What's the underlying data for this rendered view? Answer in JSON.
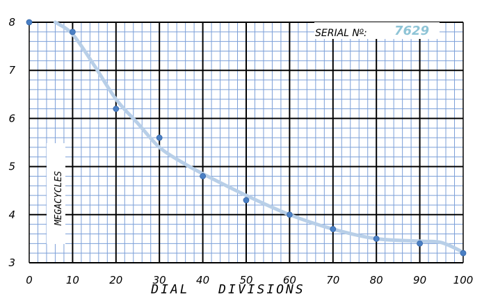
{
  "chart_data": {
    "type": "scatter",
    "title": "",
    "xlabel": "DIAL   DIVISIONS",
    "ylabel": "MEGACYCLES",
    "xlim": [
      0,
      100
    ],
    "ylim": [
      3,
      8
    ],
    "x_ticks": [
      "0",
      "10",
      "20",
      "30",
      "40",
      "50",
      "60",
      "70",
      "80",
      "90",
      "100"
    ],
    "y_ticks": [
      "3",
      "4",
      "5",
      "6",
      "7",
      "8"
    ],
    "grid": true,
    "series": [
      {
        "points": [
          {
            "x": 0,
            "y": 8.0
          },
          {
            "x": 10,
            "y": 7.8
          },
          {
            "x": 20,
            "y": 6.2
          },
          {
            "x": 30,
            "y": 5.6
          },
          {
            "x": 40,
            "y": 4.8
          },
          {
            "x": 50,
            "y": 4.3
          },
          {
            "x": 60,
            "y": 4.0
          },
          {
            "x": 70,
            "y": 3.7
          },
          {
            "x": 80,
            "y": 3.5
          },
          {
            "x": 90,
            "y": 3.4
          },
          {
            "x": 100,
            "y": 3.2
          }
        ],
        "color": "#4a7fc4"
      }
    ],
    "trend_curve": {
      "points": [
        {
          "x": 6,
          "y": 8.0
        },
        {
          "x": 10,
          "y": 7.75
        },
        {
          "x": 15,
          "y": 7.1
        },
        {
          "x": 20,
          "y": 6.4
        },
        {
          "x": 25,
          "y": 5.9
        },
        {
          "x": 30,
          "y": 5.4
        },
        {
          "x": 35,
          "y": 5.1
        },
        {
          "x": 40,
          "y": 4.85
        },
        {
          "x": 50,
          "y": 4.4
        },
        {
          "x": 60,
          "y": 4.0
        },
        {
          "x": 70,
          "y": 3.7
        },
        {
          "x": 80,
          "y": 3.5
        },
        {
          "x": 90,
          "y": 3.45
        },
        {
          "x": 95,
          "y": 3.42
        },
        {
          "x": 100,
          "y": 3.22
        }
      ],
      "color": "#b8cfe8"
    },
    "serial": {
      "label": "SERIAL N",
      "superscript": "o",
      "colon": ":",
      "value": "7629",
      "value_color": "#8ec4d6"
    },
    "colors": {
      "minor_grid": "#7b9fd8",
      "major_grid": "#000000",
      "background": "#ffffff"
    }
  }
}
